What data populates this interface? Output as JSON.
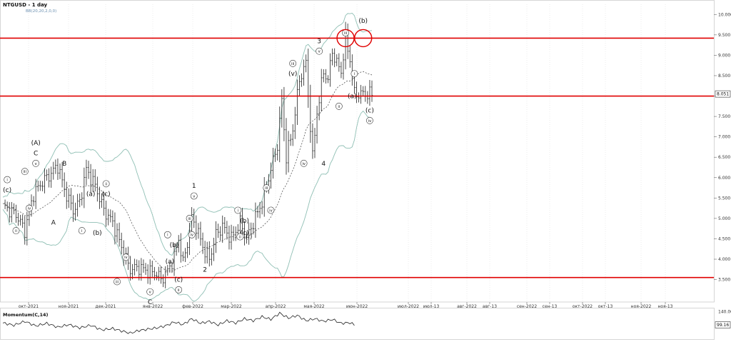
{
  "header": {
    "symbol_line": "NTGUSD - 1 day",
    "indicator_line": "BB(20,20,2,0,0)"
  },
  "colors": {
    "up": "#1a9a1a",
    "down": "#cc1111",
    "candle": "#222222",
    "bollinger": "#8fbfb4",
    "middle_band": "#444444",
    "level": "#e00000",
    "annotation": "#111111",
    "grid": "#d8d8d8"
  },
  "chart_data": [
    {
      "type": "candlestick",
      "title": "NTGUSD - 1 day",
      "subtitle": "BB(20,20,2,0,0)",
      "y_axis": {
        "position": "right",
        "range": [
          2.95,
          10.25
        ],
        "ticks": [
          "10.000",
          "9.500",
          "9.000",
          "8.500",
          "8.000",
          "7.500",
          "7.000",
          "6.500",
          "6.000",
          "5.500",
          "5.000",
          "4.500",
          "4.000",
          "3.500"
        ]
      },
      "x_axis": {
        "labels": [
          "окт-2021",
          "ноя-2021",
          "дек-2021",
          "янв-2022",
          "фев-2022",
          "мар-2022",
          "апр-2022",
          "мая-2022",
          "июн-2022",
          "июл-2022",
          "июл-13",
          "авг-2022",
          "авг-13",
          "сен-2022",
          "сен-13",
          "окт-2022",
          "окт-13",
          "ноя-2022",
          "ноя-13"
        ]
      },
      "last_price": "8.051",
      "horizontal_levels": [
        9.42,
        8.0,
        3.55
      ],
      "close_path": [
        [
          0,
          5.3
        ],
        [
          6,
          5.1
        ],
        [
          10,
          4.7
        ],
        [
          14,
          5.6
        ],
        [
          18,
          5.9
        ],
        [
          22,
          6.1
        ],
        [
          25,
          6.3
        ],
        [
          28,
          5.7
        ],
        [
          32,
          5.2
        ],
        [
          35,
          5.4
        ],
        [
          38,
          6.2
        ],
        [
          42,
          5.8
        ],
        [
          46,
          5.2
        ],
        [
          50,
          4.9
        ],
        [
          54,
          4.3
        ],
        [
          56,
          4.0
        ],
        [
          58,
          3.75
        ],
        [
          62,
          3.8
        ],
        [
          66,
          3.7
        ],
        [
          70,
          3.65
        ],
        [
          72,
          3.5
        ],
        [
          75,
          3.7
        ],
        [
          78,
          4.05
        ],
        [
          80,
          4.5
        ],
        [
          82,
          3.9
        ],
        [
          84,
          4.4
        ],
        [
          86,
          5.0
        ],
        [
          88,
          4.8
        ],
        [
          91,
          4.3
        ],
        [
          94,
          4.0
        ],
        [
          97,
          4.6
        ],
        [
          100,
          4.8
        ],
        [
          104,
          4.5
        ],
        [
          108,
          4.9
        ],
        [
          111,
          4.5
        ],
        [
          114,
          4.9
        ],
        [
          118,
          5.4
        ],
        [
          122,
          6.2
        ],
        [
          125,
          6.8
        ],
        [
          127,
          7.9
        ],
        [
          129,
          6.5
        ],
        [
          132,
          7.2
        ],
        [
          135,
          8.4
        ],
        [
          138,
          8.8
        ],
        [
          141,
          6.5
        ],
        [
          143,
          7.6
        ],
        [
          146,
          8.6
        ],
        [
          148,
          8.4
        ],
        [
          150,
          9.1
        ],
        [
          152,
          8.8
        ],
        [
          154,
          8.6
        ],
        [
          156,
          9.4
        ],
        [
          158,
          8.9
        ],
        [
          160,
          8.05
        ]
      ],
      "momentum": {
        "label": "Momentum(C,14)",
        "ticks": [
          "140.00"
        ],
        "last_value": "99.16",
        "range": [
          60,
          145
        ],
        "values": [
          [
            0,
            105
          ],
          [
            5,
            98
          ],
          [
            10,
            110
          ],
          [
            15,
            96
          ],
          [
            20,
            104
          ],
          [
            25,
            92
          ],
          [
            30,
            100
          ],
          [
            35,
            90
          ],
          [
            40,
            98
          ],
          [
            45,
            84
          ],
          [
            50,
            88
          ],
          [
            55,
            79
          ],
          [
            58,
            74
          ],
          [
            62,
            82
          ],
          [
            66,
            86
          ],
          [
            70,
            90
          ],
          [
            74,
            96
          ],
          [
            78,
            108
          ],
          [
            82,
            100
          ],
          [
            86,
            118
          ],
          [
            90,
            104
          ],
          [
            94,
            110
          ],
          [
            98,
            99
          ],
          [
            102,
            112
          ],
          [
            106,
            105
          ],
          [
            110,
            118
          ],
          [
            114,
            112
          ],
          [
            118,
            124
          ],
          [
            122,
            116
          ],
          [
            126,
            135
          ],
          [
            130,
            120
          ],
          [
            134,
            128
          ],
          [
            138,
            112
          ],
          [
            142,
            118
          ],
          [
            146,
            110
          ],
          [
            150,
            116
          ],
          [
            154,
            104
          ],
          [
            158,
            106
          ],
          [
            160,
            99
          ]
        ]
      },
      "annotations": [
        {
          "text": "(A)",
          "i": 15,
          "v": 6.85,
          "style": "plain"
        },
        {
          "text": "C",
          "i": 15,
          "v": 6.6,
          "style": "plain"
        },
        {
          "text": "v",
          "i": 15,
          "v": 6.35,
          "style": "circle"
        },
        {
          "text": "iii",
          "i": 10,
          "v": 6.15,
          "style": "circle"
        },
        {
          "text": "iv",
          "i": 12,
          "v": 5.25,
          "style": "circle"
        },
        {
          "text": "i",
          "i": 2,
          "v": 5.95,
          "style": "circle"
        },
        {
          "text": "(c)",
          "i": 2,
          "v": 5.7,
          "style": "plain"
        },
        {
          "text": "ii",
          "i": 6,
          "v": 4.7,
          "style": "circle"
        },
        {
          "text": "A",
          "i": 23,
          "v": 4.9,
          "style": "plain"
        },
        {
          "text": "B",
          "i": 28,
          "v": 6.35,
          "style": "plain"
        },
        {
          "text": "(a)",
          "i": 40,
          "v": 5.6,
          "style": "plain"
        },
        {
          "text": "i",
          "i": 36,
          "v": 4.7,
          "style": "circle"
        },
        {
          "text": "(b)",
          "i": 43,
          "v": 4.65,
          "style": "plain"
        },
        {
          "text": "ii",
          "i": 47,
          "v": 5.85,
          "style": "circle"
        },
        {
          "text": "(c)",
          "i": 47,
          "v": 5.6,
          "style": "plain"
        },
        {
          "text": "iv",
          "i": 56,
          "v": 4.05,
          "style": "circle"
        },
        {
          "text": "iii",
          "i": 52,
          "v": 3.45,
          "style": "circle"
        },
        {
          "text": "v",
          "i": 67,
          "v": 3.2,
          "style": "circle"
        },
        {
          "text": "C",
          "i": 67,
          "v": 2.95,
          "style": "plain"
        },
        {
          "text": "i",
          "i": 75,
          "v": 4.6,
          "style": "circle"
        },
        {
          "text": "(a)",
          "i": 76,
          "v": 3.95,
          "style": "plain"
        },
        {
          "text": "(b)",
          "i": 78,
          "v": 4.35,
          "style": "plain"
        },
        {
          "text": "(c)",
          "i": 80,
          "v": 3.5,
          "style": "plain"
        },
        {
          "text": "ii",
          "i": 80,
          "v": 3.25,
          "style": "circle"
        },
        {
          "text": "1",
          "i": 87,
          "v": 5.8,
          "style": "plain"
        },
        {
          "text": "v",
          "i": 87,
          "v": 5.55,
          "style": "circle"
        },
        {
          "text": "iii",
          "i": 85,
          "v": 5.0,
          "style": "circle"
        },
        {
          "text": "iv",
          "i": 86,
          "v": 4.6,
          "style": "circle"
        },
        {
          "text": "2",
          "i": 92,
          "v": 3.75,
          "style": "plain"
        },
        {
          "text": "i",
          "i": 107,
          "v": 5.2,
          "style": "circle"
        },
        {
          "text": "(b)",
          "i": 110,
          "v": 4.95,
          "style": "plain"
        },
        {
          "text": "(c)",
          "i": 110,
          "v": 4.65,
          "style": "plain"
        },
        {
          "text": "ii",
          "i": 108,
          "v": 4.55,
          "style": "circle"
        },
        {
          "text": "(i)",
          "i": 112,
          "v": 4.55,
          "style": "plain"
        },
        {
          "text": "iii",
          "i": 120,
          "v": 5.75,
          "style": "circle"
        },
        {
          "text": "iv",
          "i": 122,
          "v": 5.2,
          "style": "circle"
        },
        {
          "text": "iii",
          "i": 132,
          "v": 8.8,
          "style": "circle"
        },
        {
          "text": "(v)",
          "i": 132,
          "v": 8.55,
          "style": "plain"
        },
        {
          "text": "iv",
          "i": 137,
          "v": 6.35,
          "style": "circle"
        },
        {
          "text": "3",
          "i": 144,
          "v": 9.35,
          "style": "plain"
        },
        {
          "text": "v",
          "i": 144,
          "v": 9.1,
          "style": "circle"
        },
        {
          "text": "4",
          "i": 146,
          "v": 6.35,
          "style": "plain"
        },
        {
          "text": "iii",
          "i": 156,
          "v": 9.55,
          "style": "circle"
        },
        {
          "text": "i",
          "i": 160,
          "v": 8.55,
          "style": "circle"
        },
        {
          "text": "(a)",
          "i": 159,
          "v": 8.0,
          "style": "plain"
        },
        {
          "text": "ii",
          "i": 153,
          "v": 7.75,
          "style": "circle"
        },
        {
          "text": "(b)",
          "i": 164,
          "v": 9.85,
          "style": "plain"
        },
        {
          "text": "(c)",
          "i": 167,
          "v": 7.65,
          "style": "plain"
        },
        {
          "text": "iv",
          "i": 167,
          "v": 7.4,
          "style": "circle"
        }
      ],
      "marked_points": [
        {
          "i": 156,
          "v": 9.42
        },
        {
          "i": 164,
          "v": 9.42
        }
      ]
    }
  ]
}
